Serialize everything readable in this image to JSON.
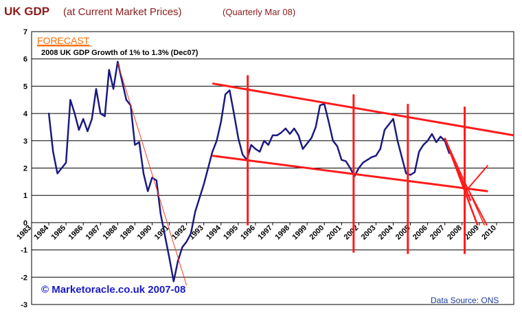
{
  "chart_data": {
    "type": "line",
    "title_main": "UK GDP",
    "title_sub": "(at Current Market Prices)",
    "title_note": "(Quarterly Mar 08)",
    "forecast_label": "FORECAST",
    "forecast_note": "2008 UK GDP Growth of 1% to 1.3% (Dec07)",
    "copyright": "© Marketoracle.co.uk 2007-08",
    "source": "Data Source: ONS",
    "ylim": [
      -3,
      7
    ],
    "yticks": [
      "7",
      "6",
      "5",
      "4",
      "3",
      "2",
      "1",
      "0",
      "-1",
      "-2",
      "-3"
    ],
    "xlim": [
      1983,
      2011
    ],
    "xticks": [
      "1983",
      "1984",
      "1985",
      "1986",
      "1987",
      "1988",
      "1989",
      "1990",
      "1991",
      "1992",
      "1993",
      "1994",
      "1995",
      "1996",
      "1997",
      "1998",
      "1999",
      "2000",
      "2001",
      "2002",
      "2003",
      "2004",
      "2005",
      "2006",
      "2007",
      "2008",
      "2009",
      "2010"
    ],
    "series": [
      {
        "name": "UK GDP growth",
        "color": "#1a1a80",
        "points": [
          [
            1984.0,
            4.0
          ],
          [
            1984.25,
            2.6
          ],
          [
            1984.5,
            1.8
          ],
          [
            1984.75,
            2.0
          ],
          [
            1985.0,
            2.2
          ],
          [
            1985.25,
            4.5
          ],
          [
            1985.5,
            4.0
          ],
          [
            1985.75,
            3.4
          ],
          [
            1986.0,
            3.8
          ],
          [
            1986.25,
            3.35
          ],
          [
            1986.5,
            3.8
          ],
          [
            1986.75,
            4.9
          ],
          [
            1987.0,
            4.0
          ],
          [
            1987.25,
            3.9
          ],
          [
            1987.5,
            5.6
          ],
          [
            1987.75,
            4.9
          ],
          [
            1988.0,
            5.9
          ],
          [
            1988.25,
            5.2
          ],
          [
            1988.5,
            4.5
          ],
          [
            1988.75,
            4.3
          ],
          [
            1989.0,
            2.85
          ],
          [
            1989.25,
            2.95
          ],
          [
            1989.5,
            1.8
          ],
          [
            1989.75,
            1.15
          ],
          [
            1990.0,
            1.65
          ],
          [
            1990.25,
            1.55
          ],
          [
            1990.5,
            0.3
          ],
          [
            1990.75,
            -0.5
          ],
          [
            1991.0,
            -1.3
          ],
          [
            1991.25,
            -2.15
          ],
          [
            1991.5,
            -1.4
          ],
          [
            1991.75,
            -0.9
          ],
          [
            1992.0,
            -0.7
          ],
          [
            1992.25,
            -0.4
          ],
          [
            1992.5,
            0.4
          ],
          [
            1992.75,
            0.9
          ],
          [
            1993.0,
            1.4
          ],
          [
            1993.25,
            2.0
          ],
          [
            1993.5,
            2.6
          ],
          [
            1993.75,
            3.0
          ],
          [
            1994.0,
            3.7
          ],
          [
            1994.25,
            4.7
          ],
          [
            1994.5,
            4.85
          ],
          [
            1994.75,
            4.0
          ],
          [
            1995.0,
            3.1
          ],
          [
            1995.25,
            2.5
          ],
          [
            1995.5,
            2.3
          ],
          [
            1995.75,
            2.85
          ],
          [
            1996.0,
            2.7
          ],
          [
            1996.25,
            2.6
          ],
          [
            1996.5,
            3.0
          ],
          [
            1996.75,
            2.85
          ],
          [
            1997.0,
            3.2
          ],
          [
            1997.25,
            3.2
          ],
          [
            1997.5,
            3.3
          ],
          [
            1997.75,
            3.45
          ],
          [
            1998.0,
            3.25
          ],
          [
            1998.25,
            3.45
          ],
          [
            1998.5,
            3.2
          ],
          [
            1998.75,
            2.7
          ],
          [
            1999.0,
            2.9
          ],
          [
            1999.25,
            3.1
          ],
          [
            1999.5,
            3.5
          ],
          [
            1999.75,
            4.3
          ],
          [
            2000.0,
            4.35
          ],
          [
            2000.25,
            3.7
          ],
          [
            2000.5,
            3.0
          ],
          [
            2000.75,
            2.8
          ],
          [
            2001.0,
            2.3
          ],
          [
            2001.25,
            2.25
          ],
          [
            2001.5,
            2.0
          ],
          [
            2001.75,
            1.7
          ],
          [
            2002.0,
            2.0
          ],
          [
            2002.25,
            2.2
          ],
          [
            2002.5,
            2.3
          ],
          [
            2002.75,
            2.4
          ],
          [
            2003.0,
            2.45
          ],
          [
            2003.25,
            2.7
          ],
          [
            2003.5,
            3.4
          ],
          [
            2003.75,
            3.6
          ],
          [
            2004.0,
            3.8
          ],
          [
            2004.25,
            3.0
          ],
          [
            2004.5,
            2.4
          ],
          [
            2004.75,
            1.8
          ],
          [
            2005.0,
            1.75
          ],
          [
            2005.25,
            1.85
          ],
          [
            2005.5,
            2.6
          ],
          [
            2005.75,
            2.85
          ],
          [
            2006.0,
            3.0
          ],
          [
            2006.25,
            3.25
          ],
          [
            2006.5,
            2.95
          ],
          [
            2006.75,
            3.15
          ],
          [
            2007.0,
            3.0
          ],
          [
            2007.25,
            2.55
          ]
        ]
      }
    ],
    "trend_lines": [
      {
        "name": "upper-channel-line",
        "color": "#ff1a1a",
        "width": 3,
        "from": [
          1993.5,
          5.1
        ],
        "to": [
          2011.0,
          3.2
        ]
      },
      {
        "name": "lower-channel-line",
        "color": "#ff1a1a",
        "width": 3,
        "from": [
          1993.5,
          2.45
        ],
        "to": [
          2009.5,
          1.15
        ]
      },
      {
        "name": "vertical-marker-1995",
        "color": "#ff1a1a",
        "width": 3,
        "from": [
          1995.55,
          5.4
        ],
        "to": [
          1995.55,
          -0.1
        ]
      },
      {
        "name": "vertical-marker-2001",
        "color": "#ff1a1a",
        "width": 3,
        "from": [
          2001.7,
          4.7
        ],
        "to": [
          2001.7,
          -1.1
        ]
      },
      {
        "name": "vertical-marker-2004",
        "color": "#ff1a1a",
        "width": 3,
        "from": [
          2004.85,
          4.35
        ],
        "to": [
          2004.85,
          -1.15
        ]
      },
      {
        "name": "vertical-marker-2008",
        "color": "#ff1a1a",
        "width": 3,
        "from": [
          2008.15,
          4.25
        ],
        "to": [
          2008.15,
          -1.15
        ]
      },
      {
        "name": "forecast-line-a",
        "color": "#ff1a1a",
        "width": 2.5,
        "from": [
          2007.0,
          3.1
        ],
        "to": [
          2008.5,
          0.8
        ]
      },
      {
        "name": "forecast-line-b",
        "color": "#ff1a1a",
        "width": 2.5,
        "from": [
          2007.0,
          3.1
        ],
        "to": [
          2008.9,
          -0.1
        ]
      },
      {
        "name": "forecast-line-c",
        "color": "#ff1a1a",
        "width": 1.5,
        "from": [
          2007.0,
          3.1
        ],
        "to": [
          2009.3,
          -0.1
        ]
      },
      {
        "name": "forecast-upturn-line",
        "color": "#ff1a1a",
        "width": 2,
        "from": [
          2008.2,
          1.15
        ],
        "to": [
          2009.5,
          2.1
        ]
      },
      {
        "name": "forecast-downturn-line",
        "color": "#ff1a1a",
        "width": 2,
        "from": [
          2008.2,
          1.4
        ],
        "to": [
          2009.45,
          -0.1
        ]
      },
      {
        "name": "decline-1988-line",
        "color": "#ff3a1a",
        "width": 1,
        "from": [
          1988.0,
          5.85
        ],
        "to": [
          1992.0,
          -2.3
        ]
      }
    ]
  }
}
